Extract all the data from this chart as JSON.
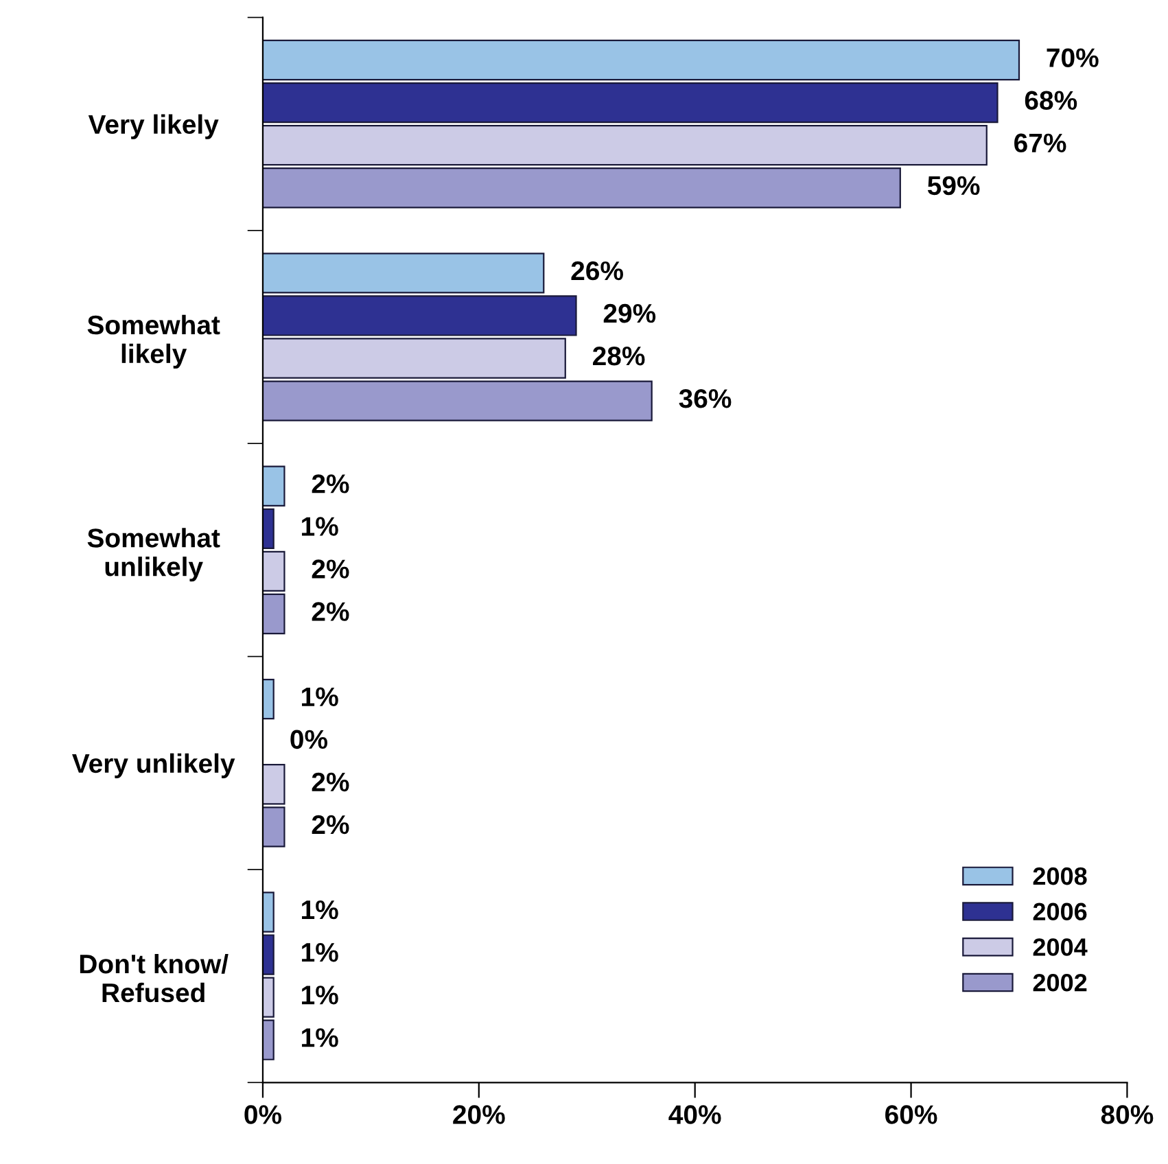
{
  "chart_data": {
    "type": "bar",
    "orientation": "horizontal",
    "categories": [
      "Very likely",
      "Somewhat\nlikely",
      "Somewhat\nunlikely",
      "Very unlikely",
      "Don't know/\nRefused"
    ],
    "series": [
      {
        "name": "2008",
        "color": "#99c3e6",
        "values": [
          70,
          26,
          2,
          1,
          1
        ],
        "value_labels": [
          "70%",
          "26%",
          "2%",
          "1%",
          "1%"
        ]
      },
      {
        "name": "2006",
        "color": "#2e3192",
        "values": [
          68,
          29,
          1,
          0,
          1
        ],
        "value_labels": [
          "68%",
          "29%",
          "1%",
          "0%",
          "1%"
        ]
      },
      {
        "name": "2004",
        "color": "#cccbe6",
        "values": [
          67,
          28,
          2,
          2,
          1
        ],
        "value_labels": [
          "67%",
          "28%",
          "2%",
          "2%",
          "1%"
        ]
      },
      {
        "name": "2002",
        "color": "#9999cc",
        "values": [
          59,
          36,
          2,
          2,
          1
        ],
        "value_labels": [
          "59%",
          "36%",
          "2%",
          "2%",
          "1%"
        ]
      }
    ],
    "xlim": [
      0,
      80
    ],
    "xticks": [
      {
        "value": 0,
        "label": "0%"
      },
      {
        "value": 20,
        "label": "20%"
      },
      {
        "value": 40,
        "label": "40%"
      },
      {
        "value": 60,
        "label": "60%"
      },
      {
        "value": 80,
        "label": "80%"
      }
    ],
    "legend": "bottom right",
    "grid": false
  }
}
